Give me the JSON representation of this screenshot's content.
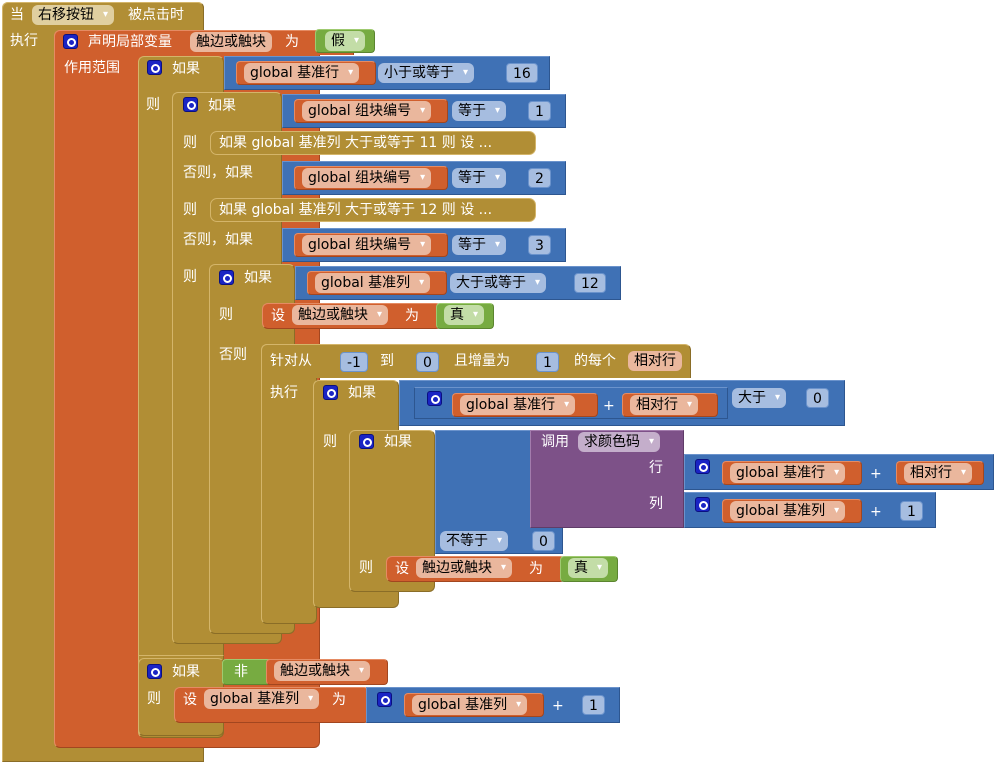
{
  "event": {
    "when": "当",
    "component": "右移按钮",
    "event_name": "被点击时",
    "do": "执行"
  },
  "declare": {
    "label": "声明局部变量",
    "var_name": "触边或触块",
    "to": "为",
    "value": "假",
    "scope": "作用范围"
  },
  "if1": {
    "label": "如果",
    "var": "global 基准行",
    "op": "小于或等于",
    "num": "16",
    "then": "则"
  },
  "if2": {
    "label": "如果",
    "var": "global 组块编号",
    "op1": "等于",
    "num1": "1",
    "then1": "则",
    "collapsed1": "如果 global 基准列 大于或等于 11 则 设 ...",
    "elseif2": "否则，如果",
    "op2": "等于",
    "num2": "2",
    "then2": "则",
    "collapsed2": "如果 global 基准列 大于或等于 12 则 设 ...",
    "elseif3": "否则，如果",
    "op3": "等于",
    "num3": "3",
    "then3": "则"
  },
  "if3": {
    "label": "如果",
    "var": "global 基准列",
    "op": "大于或等于",
    "num": "12",
    "then": "则",
    "set": "设",
    "set_var": "触边或触块",
    "to": "为",
    "value": "真",
    "else": "否则"
  },
  "for": {
    "label": "针对从",
    "from": "-1",
    "to_label": "到",
    "to": "0",
    "step_label": "且增量为",
    "step": "1",
    "each": "的每个",
    "var": "相对行",
    "do": "执行"
  },
  "if4": {
    "label": "如果",
    "var1": "global 基准行",
    "plus": "+",
    "var2": "相对行",
    "op": "大于",
    "num": "0",
    "then": "则"
  },
  "if5": {
    "label": "如果",
    "call": "调用",
    "proc": "求颜色码",
    "row": "行",
    "row_var1": "global 基准行",
    "plus": "+",
    "row_var2": "相对行",
    "col": "列",
    "col_var": "global 基准列",
    "col_num": "1",
    "op": "不等于",
    "num": "0",
    "then": "则",
    "set": "设",
    "set_var": "触边或触块",
    "to": "为",
    "value": "真"
  },
  "if6": {
    "label": "如果",
    "not": "非",
    "var": "触边或触块",
    "then": "则",
    "set": "设",
    "set_var": "global 基准列",
    "to": "为",
    "var2": "global 基准列",
    "plus": "+",
    "num": "1"
  }
}
